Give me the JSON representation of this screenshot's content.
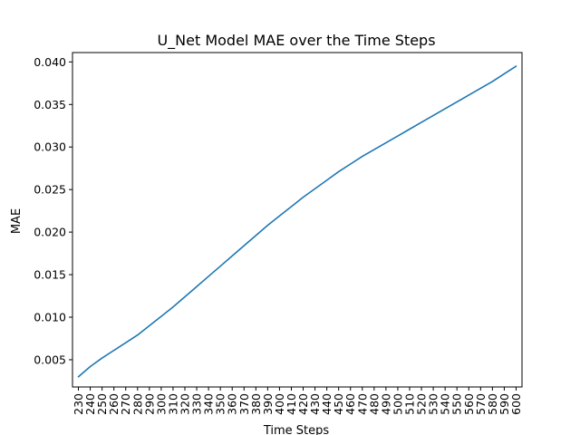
{
  "chart_data": {
    "type": "line",
    "title": "U_Net Model MAE over the Time Steps",
    "xlabel": "Time Steps",
    "ylabel": "MAE",
    "x_tick_labels": [
      "230",
      "240",
      "250",
      "260",
      "270",
      "280",
      "290",
      "300",
      "310",
      "320",
      "330",
      "340",
      "350",
      "360",
      "370",
      "380",
      "390",
      "400",
      "410",
      "420",
      "430",
      "440",
      "450",
      "460",
      "470",
      "480",
      "490",
      "500",
      "510",
      "520",
      "530",
      "540",
      "550",
      "560",
      "570",
      "580",
      "590",
      "600"
    ],
    "y_tick_labels": [
      "0.005",
      "0.010",
      "0.015",
      "0.020",
      "0.025",
      "0.030",
      "0.035",
      "0.040"
    ],
    "y_ticks": [
      0.005,
      0.01,
      0.015,
      0.02,
      0.025,
      0.03,
      0.035,
      0.04
    ],
    "xlim": [
      225,
      605
    ],
    "ylim": [
      0.0018,
      0.0411
    ],
    "grid": false,
    "legend": "none",
    "series": [
      {
        "color": "#1f77b4",
        "x": [
          230,
          240,
          250,
          260,
          270,
          280,
          290,
          300,
          310,
          320,
          330,
          340,
          350,
          360,
          370,
          380,
          390,
          400,
          410,
          420,
          430,
          440,
          450,
          460,
          470,
          480,
          490,
          500,
          510,
          520,
          530,
          540,
          550,
          560,
          570,
          580,
          590,
          600
        ],
        "y": [
          0.003,
          0.0042,
          0.0052,
          0.0061,
          0.007,
          0.0079,
          0.009,
          0.0101,
          0.0112,
          0.0124,
          0.0136,
          0.0148,
          0.016,
          0.0172,
          0.0184,
          0.0196,
          0.0208,
          0.0219,
          0.023,
          0.0241,
          0.0251,
          0.0261,
          0.0271,
          0.028,
          0.0289,
          0.0297,
          0.0305,
          0.0313,
          0.0321,
          0.0329,
          0.0337,
          0.0345,
          0.0353,
          0.0361,
          0.0369,
          0.0377,
          0.0386,
          0.0395
        ]
      }
    ]
  }
}
